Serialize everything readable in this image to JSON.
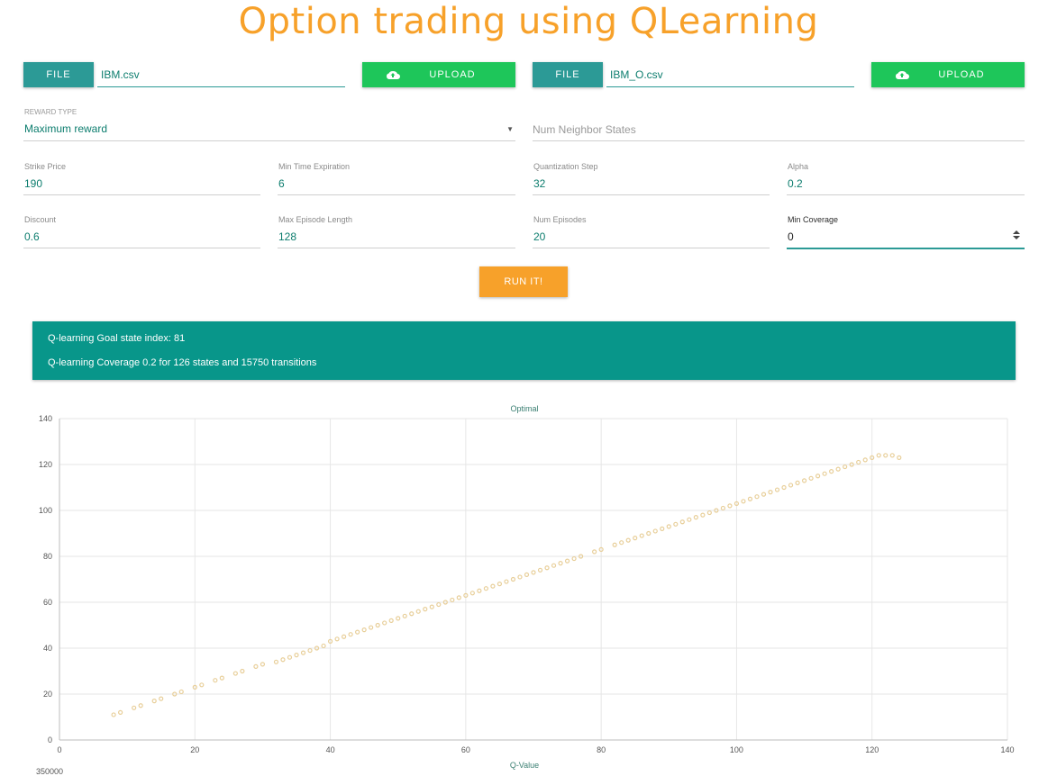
{
  "page": {
    "title": "Option trading using QLearning"
  },
  "uploads": [
    {
      "file_button": "FILE",
      "file_name": "IBM.csv",
      "upload_button": "UPLOAD"
    },
    {
      "file_button": "FILE",
      "file_name": "IBM_O.csv",
      "upload_button": "UPLOAD"
    }
  ],
  "form": {
    "reward_type": {
      "label": "REWARD TYPE",
      "value": "Maximum reward"
    },
    "num_neighbor_states": {
      "placeholder": "Num Neighbor States"
    },
    "strike_price": {
      "label": "Strike Price",
      "value": "190"
    },
    "min_time_expiration": {
      "label": "Min Time Expiration",
      "value": "6"
    },
    "quantization_step": {
      "label": "Quantization Step",
      "value": "32"
    },
    "alpha": {
      "label": "Alpha",
      "value": "0.2"
    },
    "discount": {
      "label": "Discount",
      "value": "0.6"
    },
    "max_episode_length": {
      "label": "Max Episode Length",
      "value": "128"
    },
    "num_episodes": {
      "label": "Num Episodes",
      "value": "20"
    },
    "min_coverage": {
      "label": "Min Coverage",
      "value": "0"
    }
  },
  "run_button": "RUN IT!",
  "result": {
    "line1": "Q-learning Goal state index: 81",
    "line2": "Q-learning Coverage 0.2 for 126 states and 15750 transitions"
  },
  "chart_data": {
    "type": "scatter",
    "title": "Optimal",
    "xlabel": "Q-Value",
    "ylabel": "",
    "xlim": [
      0,
      140
    ],
    "ylim": [
      0,
      140
    ],
    "xticks": [
      0,
      20,
      40,
      60,
      80,
      100,
      120,
      140
    ],
    "yticks": [
      0,
      20,
      40,
      60,
      80,
      100,
      120,
      140
    ],
    "grid": true,
    "point_color": "#e8cf9a",
    "series": [
      {
        "x": [
          8,
          9,
          11,
          12,
          14,
          15,
          17,
          18,
          20,
          21,
          23,
          24,
          26,
          27,
          29,
          30,
          32,
          33,
          34,
          35,
          36,
          37,
          38,
          39,
          40,
          41,
          42,
          43,
          44,
          45,
          46,
          47,
          48,
          49,
          50,
          51,
          52,
          53,
          54,
          55,
          56,
          57,
          58,
          59,
          60,
          61,
          62,
          63,
          64,
          65,
          66,
          67,
          68,
          69,
          70,
          71,
          72,
          73,
          74,
          75,
          76,
          77,
          79,
          80,
          82,
          83,
          84,
          85,
          86,
          87,
          88,
          89,
          90,
          91,
          92,
          93,
          94,
          95,
          96,
          97,
          98,
          99,
          100,
          101,
          102,
          103,
          104,
          105,
          106,
          107,
          108,
          109,
          110,
          111,
          112,
          113,
          114,
          115,
          116,
          117,
          118,
          119,
          120,
          121,
          122,
          123,
          124
        ],
        "y": [
          11,
          12,
          14,
          15,
          17,
          18,
          20,
          21,
          23,
          24,
          26,
          27,
          29,
          30,
          32,
          33,
          34,
          35,
          36,
          37,
          38,
          39,
          40,
          41,
          43,
          44,
          45,
          46,
          47,
          48,
          49,
          50,
          51,
          52,
          53,
          54,
          55,
          56,
          57,
          58,
          59,
          60,
          61,
          62,
          63,
          64,
          65,
          66,
          67,
          68,
          69,
          70,
          71,
          72,
          73,
          74,
          75,
          76,
          77,
          78,
          79,
          80,
          82,
          83,
          85,
          86,
          87,
          88,
          89,
          90,
          91,
          92,
          93,
          94,
          95,
          96,
          97,
          98,
          99,
          100,
          101,
          102,
          103,
          104,
          105,
          106,
          107,
          108,
          109,
          110,
          111,
          112,
          113,
          114,
          115,
          116,
          117,
          118,
          119,
          120,
          121,
          122,
          123,
          124,
          124,
          124,
          123
        ]
      }
    ]
  },
  "second_chart": {
    "partial_tick": "350000"
  },
  "colors": {
    "accent_orange": "#f7a12a",
    "teal": "#2c9a96",
    "result_teal": "#08968a",
    "upload_green": "#1ec65a",
    "value_green": "#0c7d6e"
  },
  "icons": {
    "upload": "cloud-upload-icon",
    "select": "caret-down-icon",
    "spinner": "number-spinner-icon"
  }
}
